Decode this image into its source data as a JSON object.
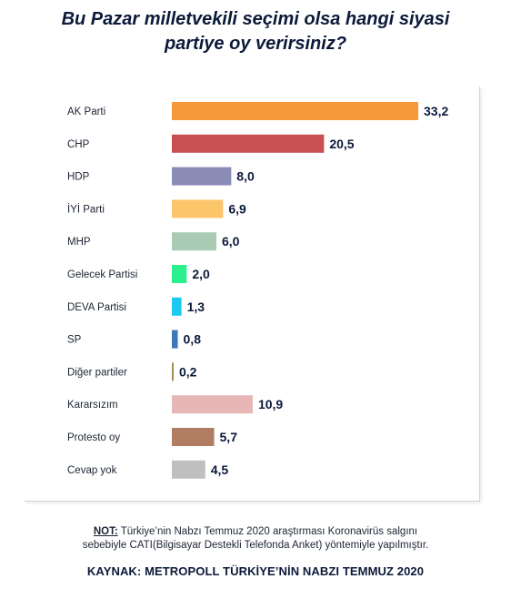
{
  "title_line1": "Bu Pazar milletvekili seçimi olsa hangi siyasi",
  "title_line2": "partiye oy verirsiniz?",
  "note": {
    "label": "NOT:",
    "line1": " Türkiye’nin Nabzı Temmuz 2020 araştırması Koronavirüs salgını",
    "line2": "sebebiyle CATI(Bilgisayar Destekli Telefonda Anket) yöntemiyle yapılmıştır."
  },
  "source": "KAYNAK: METROPOLL TÜRKİYE’NİN NABZI TEMMUZ 2020",
  "chart_data": {
    "type": "bar",
    "orientation": "horizontal",
    "title": "Bu Pazar milletvekili seçimi olsa hangi siyasi partiye oy verirsiniz?",
    "categories": [
      "AK Parti",
      "CHP",
      "HDP",
      "İYİ Parti",
      "MHP",
      "Gelecek Partisi",
      "DEVA Partisi",
      "SP",
      "Diğer partiler",
      "Kararsızım",
      "Protesto oy",
      "Cevap yok"
    ],
    "values": [
      33.2,
      20.5,
      8.0,
      6.9,
      6.0,
      2.0,
      1.3,
      0.8,
      0.2,
      10.9,
      5.7,
      4.5
    ],
    "value_labels": [
      "33,2",
      "20,5",
      "8,0",
      "6,9",
      "6,0",
      "2,0",
      "1,3",
      "0,8",
      "0,2",
      "10,9",
      "5,7",
      "4,5"
    ],
    "colors": [
      "#f7993a",
      "#c95050",
      "#8b8cb6",
      "#fcc56a",
      "#a9cbb3",
      "#2bf08e",
      "#1cc9f0",
      "#3d78b8",
      "#a88a55",
      "#e7b6b7",
      "#b07d62",
      "#bfbfbf"
    ],
    "xlim": [
      0,
      33.2
    ],
    "xlabel": "",
    "ylabel": "",
    "grid": false,
    "legend": false
  }
}
